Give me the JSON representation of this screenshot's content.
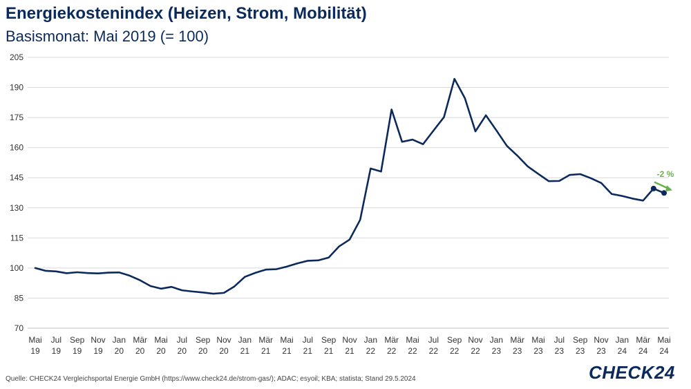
{
  "header": {
    "title": "Energiekostenindex (Heizen, Strom, Mobilität)",
    "subtitle": "Basismonat: Mai 2019 (= 100)"
  },
  "footer": {
    "source": "Quelle: CHECK24 Vergleichsportal Energie GmbH (https://www.check24.de/strom-gas/); ADAC; esyoil; KBA; statista; Stand 29.5.2024",
    "logo": "CHECK24"
  },
  "colors": {
    "line": "#0b2a5b",
    "grid": "#d9d9d9",
    "annotation": "#6ab04c"
  },
  "chart_data": {
    "type": "line",
    "title": "Energiekostenindex (Heizen, Strom, Mobilität)",
    "subtitle": "Basismonat: Mai 2019 (= 100)",
    "xlabel": "",
    "ylabel": "",
    "ylim": [
      70,
      205
    ],
    "yticks": [
      70,
      85,
      100,
      115,
      130,
      145,
      160,
      175,
      190,
      205
    ],
    "grid": true,
    "x": [
      "2019-05",
      "2019-06",
      "2019-07",
      "2019-08",
      "2019-09",
      "2019-10",
      "2019-11",
      "2019-12",
      "2020-01",
      "2020-02",
      "2020-03",
      "2020-04",
      "2020-05",
      "2020-06",
      "2020-07",
      "2020-08",
      "2020-09",
      "2020-10",
      "2020-11",
      "2020-12",
      "2021-01",
      "2021-02",
      "2021-03",
      "2021-04",
      "2021-05",
      "2021-06",
      "2021-07",
      "2021-08",
      "2021-09",
      "2021-10",
      "2021-11",
      "2021-12",
      "2022-01",
      "2022-02",
      "2022-03",
      "2022-04",
      "2022-05",
      "2022-06",
      "2022-07",
      "2022-08",
      "2022-09",
      "2022-10",
      "2022-11",
      "2022-12",
      "2023-01",
      "2023-02",
      "2023-03",
      "2023-04",
      "2023-05",
      "2023-06",
      "2023-07",
      "2023-08",
      "2023-09",
      "2023-10",
      "2023-11",
      "2023-12",
      "2024-01",
      "2024-02",
      "2024-03",
      "2024-04",
      "2024-05"
    ],
    "x_tick_labels": [
      {
        "month": "Mai",
        "year": "19"
      },
      {
        "month": "Jul",
        "year": "19"
      },
      {
        "month": "Sep",
        "year": "19"
      },
      {
        "month": "Nov",
        "year": "19"
      },
      {
        "month": "Jan",
        "year": "20"
      },
      {
        "month": "Mär",
        "year": "20"
      },
      {
        "month": "Mai",
        "year": "20"
      },
      {
        "month": "Jul",
        "year": "20"
      },
      {
        "month": "Sep",
        "year": "20"
      },
      {
        "month": "Nov",
        "year": "20"
      },
      {
        "month": "Jan",
        "year": "21"
      },
      {
        "month": "Mär",
        "year": "21"
      },
      {
        "month": "Mai",
        "year": "21"
      },
      {
        "month": "Jul",
        "year": "21"
      },
      {
        "month": "Sep",
        "year": "21"
      },
      {
        "month": "Nov",
        "year": "21"
      },
      {
        "month": "Jan",
        "year": "22"
      },
      {
        "month": "Mär",
        "year": "22"
      },
      {
        "month": "Mai",
        "year": "22"
      },
      {
        "month": "Jul",
        "year": "22"
      },
      {
        "month": "Sep",
        "year": "22"
      },
      {
        "month": "Nov",
        "year": "22"
      },
      {
        "month": "Jan",
        "year": "23"
      },
      {
        "month": "Mär",
        "year": "23"
      },
      {
        "month": "Mai",
        "year": "23"
      },
      {
        "month": "Jul",
        "year": "23"
      },
      {
        "month": "Sep",
        "year": "23"
      },
      {
        "month": "Nov",
        "year": "23"
      },
      {
        "month": "Jan",
        "year": "24"
      },
      {
        "month": "Mär",
        "year": "24"
      },
      {
        "month": "Mai",
        "year": "24"
      }
    ],
    "series": [
      {
        "values": [
          100,
          98.6,
          98.3,
          97.4,
          97.9,
          97.5,
          97.3,
          97.7,
          97.8,
          96.2,
          93.9,
          91.0,
          89.7,
          90.6,
          88.9,
          88.3,
          87.8,
          87.2,
          87.6,
          90.8,
          95.6,
          97.6,
          99.2,
          99.4,
          100.7,
          102.3,
          103.6,
          103.8,
          105.2,
          110.8,
          114.2,
          124.0,
          149.6,
          148.1,
          179.0,
          162.9,
          164.0,
          161.7,
          168.5,
          175.2,
          194.3,
          184.6,
          168.1,
          176.1,
          168.6,
          160.9,
          156.0,
          150.6,
          146.9,
          143.3,
          143.4,
          146.4,
          146.8,
          144.8,
          142.4,
          136.9,
          135.9,
          134.6,
          133.6,
          139.6,
          137.4
        ]
      }
    ],
    "highlighted_points": [
      "2024-04",
      "2024-05"
    ],
    "annotation": {
      "text": "-2 %"
    }
  }
}
